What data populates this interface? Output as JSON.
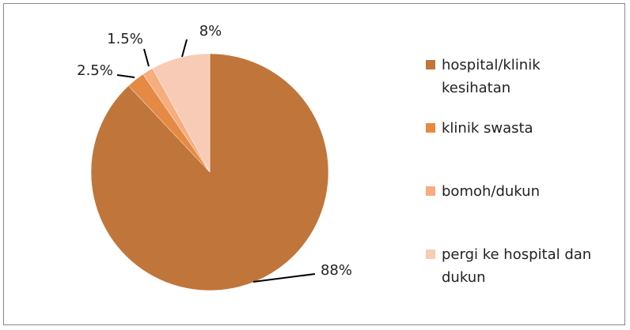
{
  "chart_data": {
    "type": "pie",
    "categories": [
      "hospital/klinik kesihatan",
      "klinik swasta",
      "bomoh/dukun",
      "pergi ke hospital dan dukun"
    ],
    "values": [
      88,
      2.5,
      1.5,
      8
    ],
    "value_labels": [
      "88%",
      "2.5%",
      "1.5%",
      "8%"
    ],
    "colors": [
      "#c0753a",
      "#e58a44",
      "#f7ad7e",
      "#f8cbb6"
    ],
    "legend": "right"
  }
}
